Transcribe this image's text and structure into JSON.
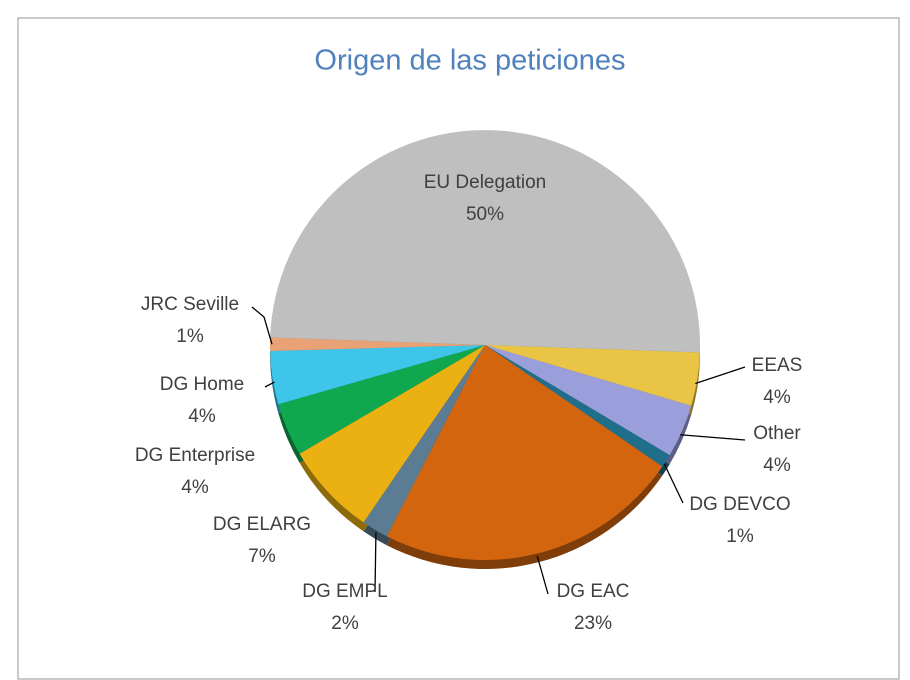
{
  "chart_data": {
    "type": "pie",
    "title": "Origen de las peticiones",
    "categories": [
      "EU Delegation",
      "EEAS",
      "Other",
      "DG DEVCO",
      "DG EAC",
      "DG EMPL",
      "DG ELARG",
      "DG Enterprise",
      "DG Home",
      "JRC Seville"
    ],
    "values": [
      50,
      4,
      4,
      1,
      23,
      2,
      7,
      4,
      4,
      1
    ],
    "value_labels": [
      "50%",
      "4%",
      "4%",
      "1%",
      "23%",
      "2%",
      "7%",
      "4%",
      "4%",
      "1%"
    ],
    "colors": [
      "#bfbfbf",
      "#e9c445",
      "#9a9fdc",
      "#1f6f8b",
      "#d4650f",
      "#5b7c93",
      "#ebb011",
      "#10a84f",
      "#3ec5ea",
      "#e8a276"
    ]
  }
}
